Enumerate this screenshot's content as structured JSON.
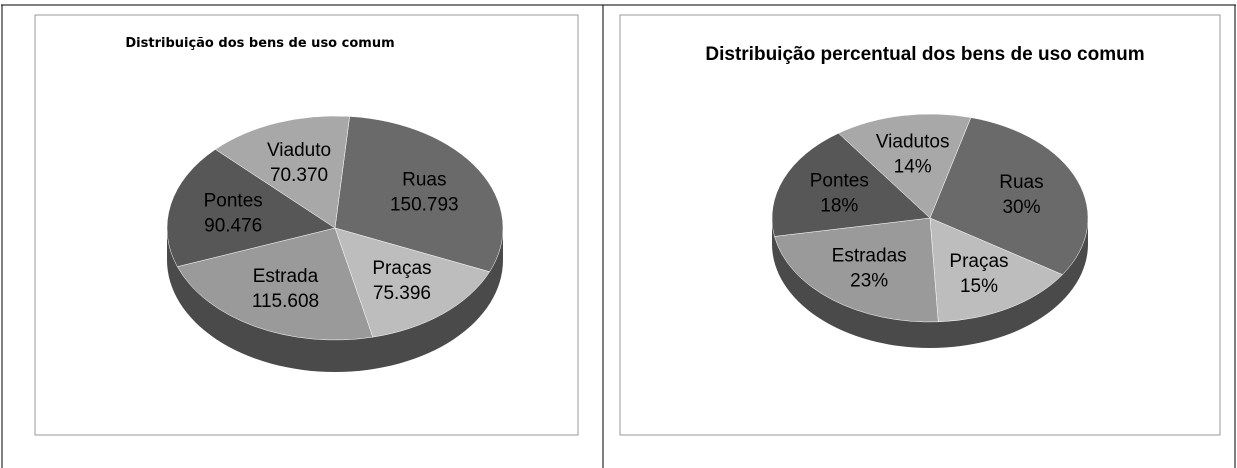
{
  "chart_data": [
    {
      "type": "pie",
      "title": "Distribuição  dos bens de uso comum",
      "categories": [
        "Ruas",
        "Praças",
        "Estrada",
        "Pontes",
        "Viaduto"
      ],
      "values": [
        150793,
        75396,
        115608,
        90476,
        70370
      ],
      "value_labels": [
        "150.793",
        "75.396",
        "115.608",
        "90.476",
        "70.370"
      ],
      "colors": [
        "#6a6a6a",
        "#bdbdbd",
        "#9a9a9a",
        "#575757",
        "#a8a8a8"
      ]
    },
    {
      "type": "pie",
      "title": "Distribuição percentual dos bens de uso comum",
      "categories": [
        "Ruas",
        "Praças",
        "Estradas",
        "Pontes",
        "Viadutos"
      ],
      "values": [
        30,
        15,
        23,
        18,
        14
      ],
      "value_labels": [
        "30%",
        "15%",
        "23%",
        "18%",
        "14%"
      ],
      "colors": [
        "#6a6a6a",
        "#bdbdbd",
        "#9a9a9a",
        "#575757",
        "#a8a8a8"
      ]
    }
  ]
}
